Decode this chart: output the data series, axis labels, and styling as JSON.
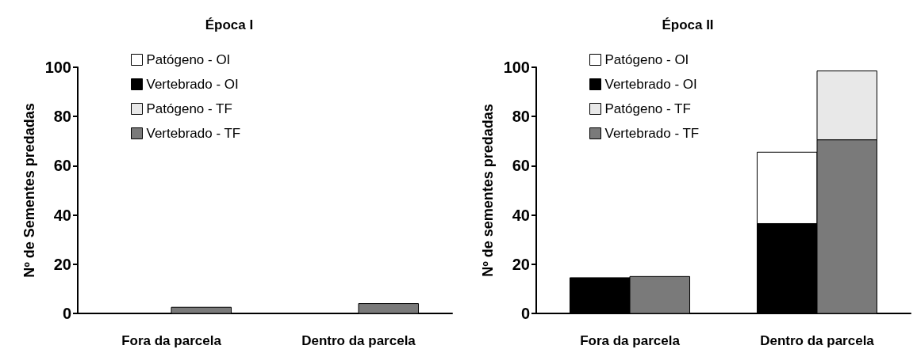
{
  "chart_data": [
    {
      "type": "bar",
      "title": "Época I",
      "ylabel": "Nº de Sementes predadas",
      "categories": [
        "Fora da parcela",
        "Dentro da parcela"
      ],
      "ylim": [
        0,
        100
      ],
      "yticks": [
        0,
        20,
        40,
        60,
        80,
        100
      ],
      "grid": false,
      "legend": "top left",
      "series": [
        {
          "name": "Patógeno - OI",
          "color": "#ffffff",
          "values": [
            null,
            null
          ]
        },
        {
          "name": "Vertebrado - OI",
          "color": "#000000",
          "values": [
            null,
            null
          ]
        },
        {
          "name": "Patógeno - TF",
          "color": "#e8e8e8",
          "values": [
            null,
            null
          ]
        },
        {
          "name": "Vertebrado - TF",
          "color": "#7a7a7a",
          "values": [
            2.5,
            4
          ]
        }
      ]
    },
    {
      "type": "bar",
      "title": "Época II",
      "ylabel": "Nº de sementes predadas",
      "categories": [
        "Fora da parcela",
        "Dentro da parcela"
      ],
      "ylim": [
        0,
        100
      ],
      "yticks": [
        0,
        20,
        40,
        60,
        80,
        100
      ],
      "grid": false,
      "legend": "top left",
      "series": [
        {
          "name": "Patógeno - OI",
          "color": "#ffffff",
          "base": [
            null,
            36.5
          ],
          "values": [
            null,
            29
          ]
        },
        {
          "name": "Vertebrado - OI",
          "color": "#000000",
          "values": [
            14.5,
            36.5
          ]
        },
        {
          "name": "Patógeno - TF",
          "color": "#e8e8e8",
          "base": [
            null,
            70.5
          ],
          "values": [
            null,
            28
          ]
        },
        {
          "name": "Vertebrado - TF",
          "color": "#7a7a7a",
          "values": [
            15,
            70.5
          ]
        }
      ]
    }
  ]
}
